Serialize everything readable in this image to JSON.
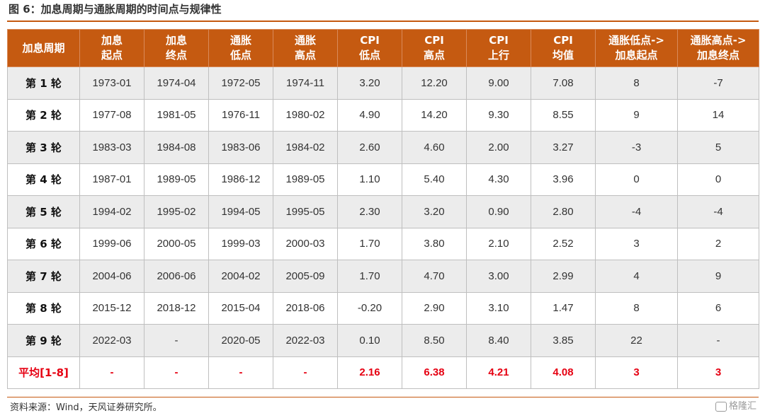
{
  "figure": {
    "title": "图 6：加息周期与通胀周期的时间点与规律性"
  },
  "table": {
    "headers": [
      [
        "加息周期"
      ],
      [
        "加息",
        "起点"
      ],
      [
        "加息",
        "终点"
      ],
      [
        "通胀",
        "低点"
      ],
      [
        "通胀",
        "高点"
      ],
      [
        "CPI",
        "低点"
      ],
      [
        "CPI",
        "高点"
      ],
      [
        "CPI",
        "上行"
      ],
      [
        "CPI",
        "均值"
      ],
      [
        "通胀低点->",
        "加息起点"
      ],
      [
        "通胀高点->",
        "加息终点"
      ]
    ],
    "rows": [
      [
        "第 1 轮",
        "1973-01",
        "1974-04",
        "1972-05",
        "1974-11",
        "3.20",
        "12.20",
        "9.00",
        "7.08",
        "8",
        "-7"
      ],
      [
        "第 2 轮",
        "1977-08",
        "1981-05",
        "1976-11",
        "1980-02",
        "4.90",
        "14.20",
        "9.30",
        "8.55",
        "9",
        "14"
      ],
      [
        "第 3 轮",
        "1983-03",
        "1984-08",
        "1983-06",
        "1984-02",
        "2.60",
        "4.60",
        "2.00",
        "3.27",
        "-3",
        "5"
      ],
      [
        "第 4 轮",
        "1987-01",
        "1989-05",
        "1986-12",
        "1989-05",
        "1.10",
        "5.40",
        "4.30",
        "3.96",
        "0",
        "0"
      ],
      [
        "第 5 轮",
        "1994-02",
        "1995-02",
        "1994-05",
        "1995-05",
        "2.30",
        "3.20",
        "0.90",
        "2.80",
        "-4",
        "-4"
      ],
      [
        "第 6 轮",
        "1999-06",
        "2000-05",
        "1999-03",
        "2000-03",
        "1.70",
        "3.80",
        "2.10",
        "2.52",
        "3",
        "2"
      ],
      [
        "第 7 轮",
        "2004-06",
        "2006-06",
        "2004-02",
        "2005-09",
        "1.70",
        "4.70",
        "3.00",
        "2.99",
        "4",
        "9"
      ],
      [
        "第 8 轮",
        "2015-12",
        "2018-12",
        "2015-04",
        "2018-06",
        "-0.20",
        "2.90",
        "3.10",
        "1.47",
        "8",
        "6"
      ],
      [
        "第 9 轮",
        "2022-03",
        "-",
        "2020-05",
        "2022-03",
        "0.10",
        "8.50",
        "8.40",
        "3.85",
        "22",
        "-"
      ]
    ],
    "average_row": [
      "平均[1-8]",
      "-",
      "-",
      "-",
      "-",
      "2.16",
      "6.38",
      "4.21",
      "4.08",
      "3",
      "3"
    ]
  },
  "footer": {
    "source": "资料来源：Wind，天风证券研究所。",
    "watermark": "格隆汇"
  },
  "colors": {
    "header_bg": "#c55a11",
    "header_text": "#ffffff",
    "average_text": "#e60012",
    "stripe_bg": "#ececec"
  }
}
